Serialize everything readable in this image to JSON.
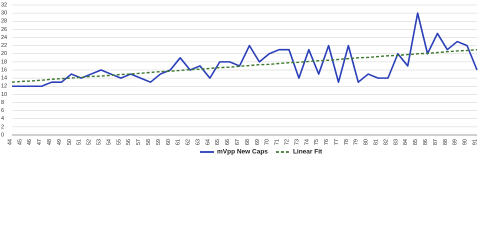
{
  "chart_data": {
    "type": "line",
    "categories": [
      44,
      45,
      46,
      47,
      48,
      49,
      50,
      51,
      52,
      53,
      54,
      55,
      56,
      57,
      58,
      59,
      60,
      61,
      62,
      63,
      64,
      65,
      66,
      67,
      68,
      69,
      70,
      71,
      72,
      73,
      74,
      75,
      76,
      77,
      78,
      79,
      80,
      81,
      82,
      83,
      84,
      85,
      86,
      87,
      88,
      89,
      90,
      91
    ],
    "series": [
      {
        "name": "mVpp New Caps",
        "color": "#2a3fb8",
        "dashed": false,
        "values": [
          12,
          12,
          12,
          12,
          13,
          13,
          15,
          14,
          15,
          16,
          15,
          14,
          15,
          14,
          13,
          15,
          16,
          19,
          16,
          17,
          14,
          18,
          18,
          17,
          22,
          18,
          20,
          21,
          21,
          14,
          21,
          15,
          22,
          13,
          22,
          13,
          15,
          14,
          14,
          20,
          17,
          30,
          20,
          25,
          21,
          23,
          22,
          16
        ]
      },
      {
        "name": "Linear Fit",
        "color": "#3f7a2f",
        "dashed": true,
        "values": [
          13.0,
          13.2,
          13.3,
          13.5,
          13.7,
          13.9,
          14.0,
          14.2,
          14.4,
          14.5,
          14.7,
          14.9,
          15.0,
          15.2,
          15.4,
          15.6,
          15.7,
          15.9,
          16.1,
          16.2,
          16.4,
          16.6,
          16.7,
          16.9,
          17.1,
          17.3,
          17.4,
          17.6,
          17.8,
          17.9,
          18.1,
          18.3,
          18.4,
          18.6,
          18.8,
          19.0,
          19.1,
          19.3,
          19.5,
          19.6,
          19.8,
          20.0,
          20.1,
          20.3,
          20.5,
          20.7,
          20.8,
          21.0
        ]
      }
    ],
    "ylim": [
      0,
      32
    ],
    "yticks": [
      0,
      2,
      4,
      6,
      8,
      10,
      12,
      14,
      16,
      18,
      20,
      22,
      24,
      26,
      28,
      30,
      32
    ],
    "grid": true
  }
}
